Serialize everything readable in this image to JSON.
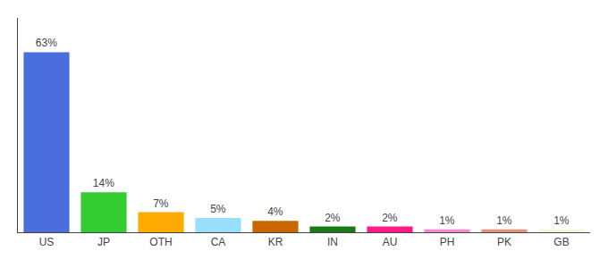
{
  "chart_data": {
    "type": "bar",
    "categories": [
      "US",
      "JP",
      "OTH",
      "CA",
      "KR",
      "IN",
      "AU",
      "PH",
      "PK",
      "GB"
    ],
    "values": [
      63,
      14,
      7,
      5,
      4,
      2,
      2,
      1,
      1,
      1
    ],
    "value_labels": [
      "63%",
      "14%",
      "7%",
      "5%",
      "4%",
      "2%",
      "2%",
      "1%",
      "1%",
      "1%"
    ],
    "colors": [
      "#4a6fdc",
      "#33cc33",
      "#ffaa00",
      "#99ddff",
      "#cc6600",
      "#1a7a1a",
      "#ff1a8c",
      "#ff88cc",
      "#e8907a",
      "#f5f5dc"
    ],
    "ylim": [
      0,
      75
    ],
    "yticks": [],
    "grid": false,
    "data_labels": true,
    "tick_labels": "x"
  }
}
